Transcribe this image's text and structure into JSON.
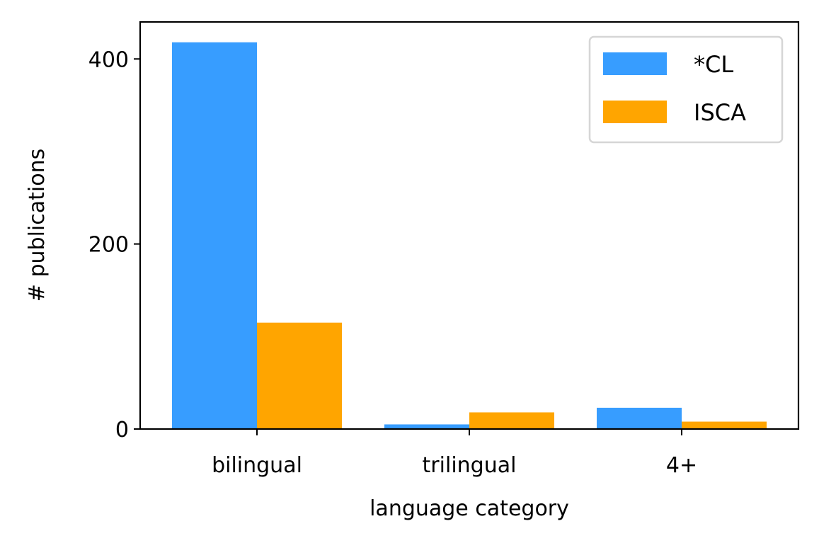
{
  "chart_data": {
    "type": "bar",
    "xlabel": "language category",
    "ylabel": "# publications",
    "categories": [
      "bilingual",
      "trilingual",
      "4+"
    ],
    "series": [
      {
        "name": "*CL",
        "color": "#379DFF",
        "values": [
          418,
          5,
          23
        ]
      },
      {
        "name": "ISCA",
        "color": "#FFA500",
        "values": [
          115,
          18,
          8
        ]
      }
    ],
    "ylim": [
      0,
      440
    ],
    "yticks": [
      0,
      200,
      400
    ],
    "grid": false,
    "legend_position": "upper right"
  }
}
